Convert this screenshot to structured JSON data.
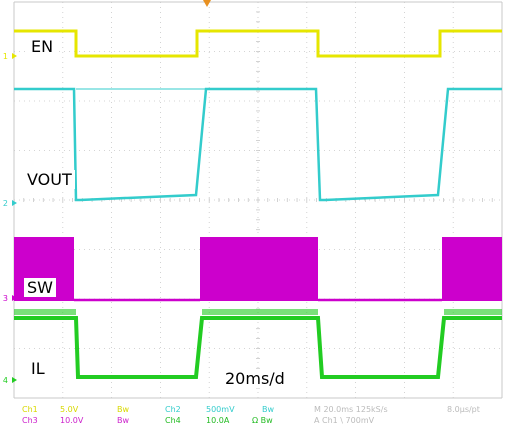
{
  "channels": [
    {
      "id": "ch1",
      "marker": "1",
      "label": "EN",
      "color": "#e6e600"
    },
    {
      "id": "ch2",
      "marker": "2",
      "label": "VOUT",
      "color": "#33cccc"
    },
    {
      "id": "ch3",
      "marker": "3",
      "label": "SW",
      "color": "#cc00cc"
    },
    {
      "id": "ch4",
      "marker": "4",
      "label": "IL",
      "color": "#22cc22"
    }
  ],
  "timebase_label": "20ms/d",
  "status": {
    "row1": {
      "ch1": "Ch1",
      "ch1_scale": "5.0V",
      "ch1_bw": "Bw",
      "ch2": "Ch2",
      "ch2_scale": "500mV",
      "ch2_bw": "Bw",
      "horiz": "M 20.0ms 125kS/s",
      "pts": "8.0µs/pt"
    },
    "row2": {
      "ch3": "Ch3",
      "ch3_scale": "10.0V",
      "ch3_bw": "Bw",
      "ch4": "Ch4",
      "ch4_scale": "10.0A",
      "ch4_bw": "Ω Bw",
      "trigger": "A Ch1 \\ 700mV"
    }
  },
  "trigger_marker_color": "#e89020"
}
